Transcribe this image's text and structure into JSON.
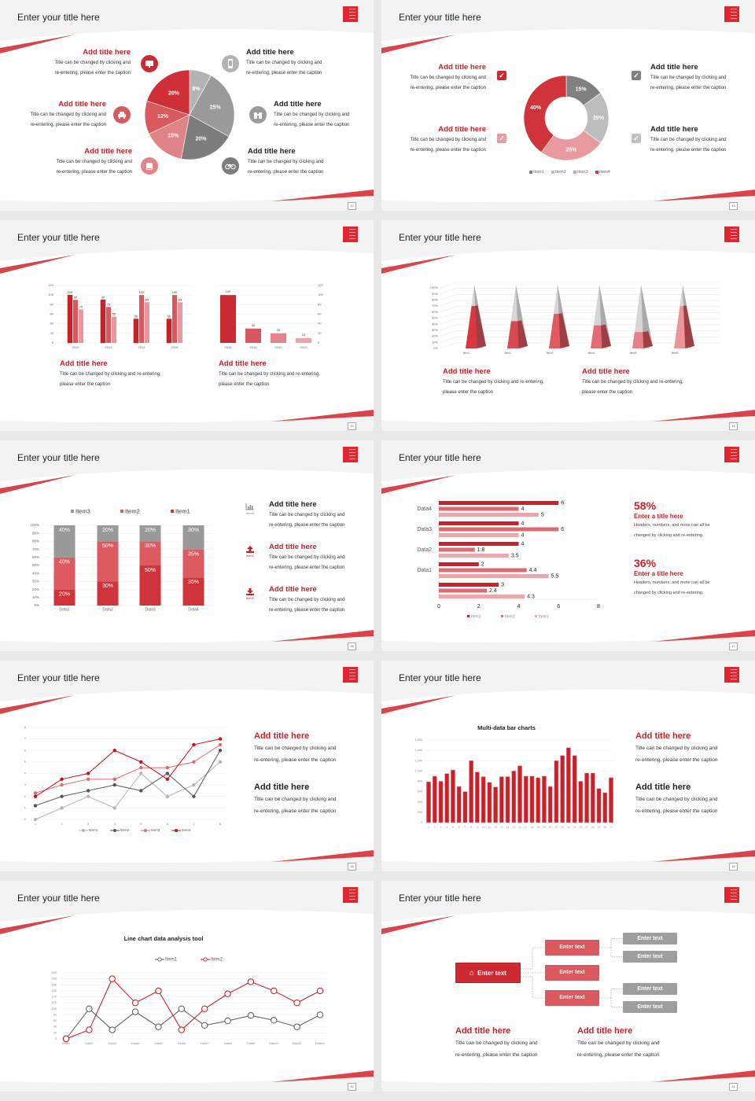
{
  "slides": [
    {
      "title": "Enter your title here",
      "page": "12"
    },
    {
      "title": "Enter your title here",
      "page": "13"
    },
    {
      "title": "Enter your title here",
      "page": "14"
    },
    {
      "title": "Enter your title here",
      "page": "15"
    },
    {
      "title": "Enter your title here",
      "page": "16"
    },
    {
      "title": "Enter your title here",
      "page": "17"
    },
    {
      "title": "Enter your title here",
      "page": "18"
    },
    {
      "title": "Enter your title here",
      "page": "19"
    },
    {
      "title": "Enter your title here",
      "page": "20"
    },
    {
      "title": "Enter your title here",
      "page": "21"
    }
  ],
  "colors": {
    "accent": "#cc1f28",
    "red1": "#cc2a33",
    "red2": "#d9595f",
    "red3": "#e38489",
    "red4": "#eaa5a8",
    "gray1": "#7d7d7d",
    "gray2": "#9a9a9a",
    "gray3": "#b3b3b3",
    "background": "#f3f3f3"
  },
  "s1": {
    "items": [
      {
        "title": "Add title here",
        "desc": [
          "Title can be changed by clicking and",
          "re-entering, please enter the caption"
        ],
        "icon": "monitor-icon"
      },
      {
        "title": "Add title here",
        "desc": [
          "Title can be changed by clicking and",
          "re-entering, please enter the caption"
        ],
        "icon": "car-icon"
      },
      {
        "title": "Add title here",
        "desc": [
          "Title can be changed by clicking and",
          "re-entering, please enter the caption"
        ],
        "icon": "book-icon"
      },
      {
        "title": "Add title here",
        "desc": [
          "Title can be changed by clicking and",
          "re-entering, please enter the caption"
        ],
        "icon": "phone-icon"
      },
      {
        "title": "Add title here",
        "desc": [
          "Title can be changed by clicking and",
          "re-entering, please enter the caption"
        ],
        "icon": "binoculars-icon"
      },
      {
        "title": "Add title here",
        "desc": [
          "Title can be changed by clicking and",
          "re-entering, please enter the caption"
        ],
        "icon": "bicycle-icon"
      }
    ]
  },
  "s2": {
    "items": [
      {
        "title": "Add title here",
        "desc": [
          "Title can be changed by clicking and",
          "re-entering, please enter the caption"
        ]
      },
      {
        "title": "Add title here",
        "desc": [
          "Title can be changed by clicking and",
          "re-entering, please enter the caption"
        ]
      },
      {
        "title": "Add title here",
        "desc": [
          "Title can be changed by clicking and",
          "re-entering, please enter the caption"
        ]
      },
      {
        "title": "Add title here",
        "desc": [
          "Title can be changed by clicking and",
          "re-entering, please enter the caption"
        ]
      }
    ],
    "check": "✓"
  },
  "s3": {
    "items": [
      {
        "title": "Add title here",
        "desc": [
          "Title can be changed by clicking and re-entering,",
          "please enter the caption"
        ]
      },
      {
        "title": "Add title here",
        "desc": [
          "Title can be changed by clicking and re-entering,",
          "please enter the caption"
        ]
      }
    ]
  },
  "s4": {
    "items": [
      {
        "title": "Add title here",
        "desc": [
          "Title can be changed by clicking and re-entering,",
          "please enter the caption"
        ]
      },
      {
        "title": "Add title here",
        "desc": [
          "Title can be changed by clicking and re-entering,",
          "please enter the caption"
        ]
      }
    ]
  },
  "s5": {
    "items": [
      {
        "label": "Item3",
        "icon": "bar-chart-icon",
        "title": "Add title here",
        "desc": [
          "Title can be changed by clicking and",
          "re-entering, please enter the caption"
        ]
      },
      {
        "label": "Item2",
        "icon": "upload-icon",
        "title": "Add title here",
        "desc": [
          "Title can be changed by clicking and",
          "re-entering, please enter the caption"
        ]
      },
      {
        "label": "Item1",
        "icon": "download-icon",
        "title": "Add title here",
        "desc": [
          "Title can be changed by clicking and",
          "re-entering, please enter the caption"
        ]
      }
    ]
  },
  "s6": {
    "stats": [
      {
        "value": "58%",
        "title": "Enter a title here",
        "desc": [
          "Headers, numbers, and more can all be",
          "changed by clicking and re-entering."
        ]
      },
      {
        "value": "36%",
        "title": "Enter a title here",
        "desc": [
          "Headers, numbers, and more can all be",
          "changed by clicking and re-entering."
        ]
      }
    ]
  },
  "s7": {
    "items": [
      {
        "title": "Add title here",
        "desc": [
          "Title can be changed by clicking and",
          "re-entering, please enter the caption"
        ]
      },
      {
        "title": "Add title here",
        "desc": [
          "Title can be changed by clicking and",
          "re-entering, please enter the caption"
        ]
      }
    ]
  },
  "s8": {
    "items": [
      {
        "title": "Add title here",
        "desc": [
          "Title can be changed by clicking and",
          "re-entering, please enter the caption"
        ]
      },
      {
        "title": "Add title here",
        "desc": [
          "Title can be changed by clicking and",
          "re-entering, please enter the caption"
        ]
      }
    ]
  },
  "s10": {
    "root": "Enter text",
    "mid": [
      "Enter text",
      "Enter text",
      "Enter text"
    ],
    "leaf": [
      "Enter text",
      "Enter text",
      "Enter text",
      "Enter text"
    ],
    "items": [
      {
        "title": "Add title here",
        "desc": [
          "Title can be changed by clicking and",
          "re-entering, please enter the caption"
        ]
      },
      {
        "title": "Add title here",
        "desc": [
          "Title can be changed by clicking and",
          "re-entering, please enter the caption"
        ]
      }
    ]
  },
  "chart_data": [
    {
      "type": "pie",
      "values": [
        8,
        25,
        20,
        15,
        12,
        20
      ],
      "labels": [
        "8%",
        "25%",
        "20%",
        "15%",
        "12%",
        "20%"
      ],
      "colors": [
        "#b3b3b3",
        "#9a9a9a",
        "#7d7d7d",
        "#e08388",
        "#d9595f",
        "#cf3038"
      ]
    },
    {
      "type": "pie",
      "donut": true,
      "categories": [
        "Item1",
        "Item2",
        "Item3",
        "Item4"
      ],
      "values": [
        15,
        20,
        25,
        40
      ],
      "labels": [
        "15%",
        "20%",
        "25%",
        "40%"
      ],
      "colors": [
        "#808080",
        "#bdbdbd",
        "#e89a9e",
        "#d0333a"
      ],
      "legend": "bottom"
    },
    {
      "type": "bar",
      "categories": [
        "2010",
        "2012",
        "2014",
        "2016"
      ],
      "series": [
        {
          "values": [
            100,
            90,
            50,
            50
          ]
        },
        {
          "values": [
            90,
            75,
            100,
            100
          ]
        },
        {
          "values": [
            70,
            55,
            85,
            85
          ]
        }
      ],
      "ylim": [
        0,
        120
      ],
      "yticks": [
        0,
        20,
        40,
        60,
        80,
        100,
        120
      ],
      "grid": true,
      "colors": [
        "#c9222b",
        "#d9585f",
        "#e8989c"
      ]
    },
    {
      "type": "bar",
      "categories": [
        "2016",
        "2014",
        "2012",
        "2010"
      ],
      "values": [
        100,
        30,
        20,
        10
      ],
      "ylim": [
        0,
        120
      ],
      "yticks": [
        0,
        20,
        40,
        60,
        80,
        100,
        120
      ],
      "yaxis": "right",
      "grid": true,
      "colors": [
        "#cc2a33",
        "#d9585f",
        "#e38489",
        "#eaa5a8"
      ]
    },
    {
      "type": "bar",
      "style": "3d-cone",
      "categories": [
        "Item1",
        "Item2",
        "Item3",
        "Item4",
        "Item5",
        "Item6"
      ],
      "values": [
        70,
        45,
        57,
        38,
        27,
        70
      ],
      "ylim": [
        0,
        100
      ],
      "yticks": [
        "0%",
        "10%",
        "20%",
        "30%",
        "40%",
        "50%",
        "60%",
        "70%",
        "80%",
        "90%",
        "100%"
      ],
      "grid": true,
      "colors": [
        "#d9363e",
        "#dc4850",
        "#e05a62",
        "#e36c72",
        "#e77f84",
        "#ec9498"
      ]
    },
    {
      "type": "bar",
      "stacked": true,
      "categories": [
        "Data1",
        "Data2",
        "Data3",
        "Data4"
      ],
      "series": [
        {
          "name": "Item1",
          "values": [
            20,
            30,
            50,
            35
          ]
        },
        {
          "name": "Item2",
          "values": [
            40,
            50,
            30,
            35
          ]
        },
        {
          "name": "Item3",
          "values": [
            40,
            20,
            20,
            30
          ]
        }
      ],
      "ylim": [
        0,
        100
      ],
      "yticks": [
        "0%",
        "10%",
        "20%",
        "30%",
        "40%",
        "50%",
        "60%",
        "70%",
        "80%",
        "90%",
        "100%"
      ],
      "legend": "top",
      "colors": [
        "#d0333a",
        "#dc5a60",
        "#999999"
      ]
    },
    {
      "type": "bar",
      "orientation": "horizontal",
      "categories": [
        "Data4",
        "Data3",
        "Data2",
        "Data1",
        ""
      ],
      "series": [
        {
          "name": "Item3",
          "values": [
            6,
            4,
            4,
            2,
            3
          ]
        },
        {
          "name": "Item2",
          "values": [
            4,
            6,
            1.8,
            4.4,
            2.4
          ]
        },
        {
          "name": "Item1",
          "values": [
            5,
            4,
            3.5,
            5.5,
            4.3
          ]
        }
      ],
      "xlim": [
        0,
        8
      ],
      "xticks": [
        0,
        2,
        4,
        6,
        8
      ],
      "legend": "bottom",
      "colors": [
        "#c9222b",
        "#db6b70",
        "#e9a9ac"
      ]
    },
    {
      "type": "line",
      "x": [
        "1",
        "2",
        "3",
        "4",
        "5",
        "6",
        "7",
        "8"
      ],
      "series": [
        {
          "name": "Item1",
          "values": [
            0,
            1,
            2,
            1,
            4,
            2,
            3,
            5
          ]
        },
        {
          "name": "Item2",
          "values": [
            1.2,
            2,
            2.5,
            3,
            2.5,
            4,
            2,
            6
          ]
        },
        {
          "name": "Item3",
          "values": [
            2.3,
            3,
            3.5,
            3.5,
            4.5,
            4.5,
            5,
            6.5
          ]
        },
        {
          "name": "Item4",
          "values": [
            2,
            3.5,
            4,
            6,
            5,
            3.5,
            6.5,
            7
          ]
        }
      ],
      "ylim": [
        0,
        8
      ],
      "yticks": [
        0,
        1,
        2,
        3,
        4,
        5,
        6,
        7,
        8
      ],
      "grid": true,
      "legend": "bottom",
      "colors": [
        "#b5b5b5",
        "#555555",
        "#e06a70",
        "#cc0f1a"
      ]
    },
    {
      "type": "bar",
      "title": "Multi-data bar charts",
      "categories": [
        "1",
        "2",
        "3",
        "4",
        "5",
        "6",
        "7",
        "8",
        "9",
        "10",
        "11",
        "12",
        "13",
        "14",
        "15",
        "16",
        "17",
        "18",
        "19",
        "20",
        "21",
        "22",
        "23",
        "24",
        "25",
        "26",
        "27",
        "28",
        "29",
        "30",
        "31"
      ],
      "values": [
        790,
        900,
        800,
        950,
        1020,
        700,
        600,
        1200,
        980,
        890,
        780,
        690,
        890,
        890,
        1000,
        1100,
        900,
        900,
        870,
        900,
        700,
        1200,
        1300,
        1450,
        1300,
        800,
        960,
        960,
        660,
        580,
        870
      ],
      "ylim": [
        0,
        1600
      ],
      "yticks": [
        "0",
        "200",
        "400",
        "600",
        "800",
        "1,000",
        "1,200",
        "1,400",
        "1,600"
      ],
      "grid": true,
      "colors": [
        "#cc1f28"
      ]
    },
    {
      "type": "line",
      "title": "Line chart data analysis tool",
      "x": [
        "Data1",
        "Data2",
        "Data3",
        "Data4",
        "Data5",
        "Data6",
        "Data7",
        "Data8",
        "Data9",
        "Data10",
        "Data11",
        "Data12"
      ],
      "series": [
        {
          "name": "Item1",
          "values": [
            0,
            100,
            30,
            90,
            40,
            100,
            45,
            60,
            78,
            62,
            40,
            80
          ]
        },
        {
          "name": "Item2",
          "values": [
            0,
            30,
            200,
            120,
            160,
            30,
            100,
            150,
            190,
            160,
            120,
            160
          ]
        }
      ],
      "ylim": [
        0,
        220
      ],
      "yticks": [
        0,
        20,
        40,
        60,
        80,
        100,
        120,
        140,
        160,
        180,
        200,
        220
      ],
      "grid": true,
      "legend": "top",
      "colors": [
        "#555555",
        "#cc0f1a"
      ]
    }
  ]
}
